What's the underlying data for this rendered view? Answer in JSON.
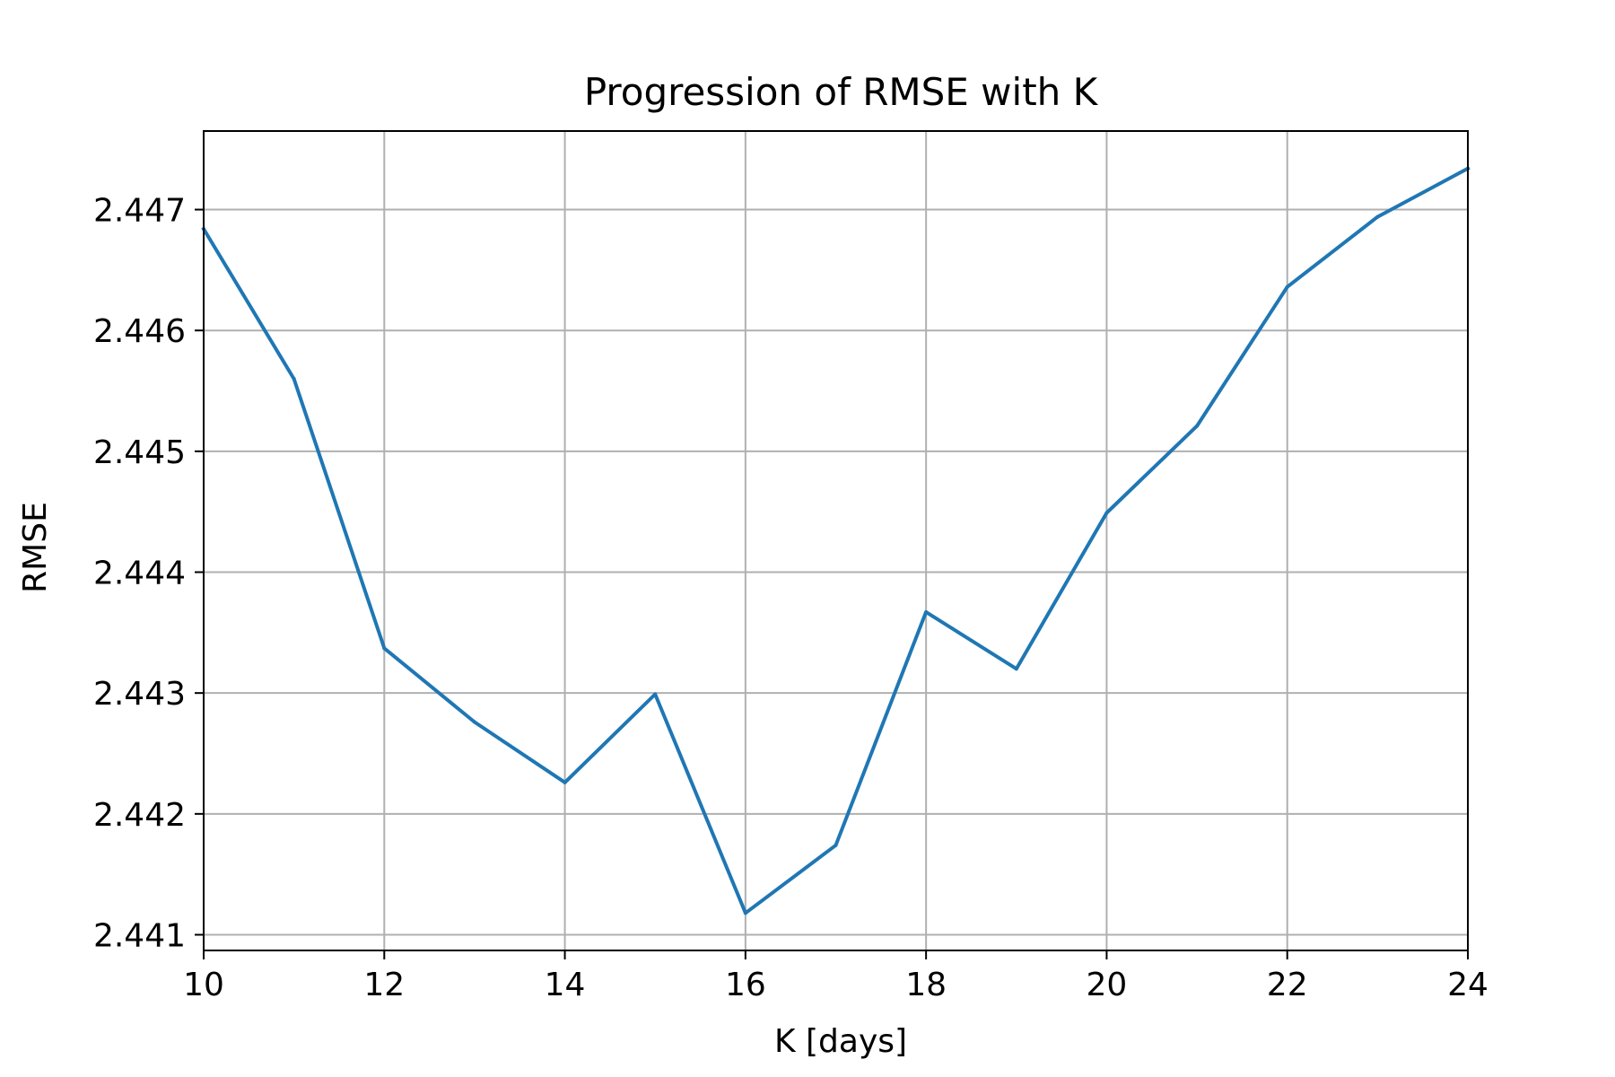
{
  "chart_data": {
    "type": "line",
    "title": "Progression of RMSE with K",
    "xlabel": "K [days]",
    "ylabel": "RMSE",
    "xlim": [
      10,
      24
    ],
    "ylim": [
      2.44087,
      2.44765
    ],
    "xticks": [
      10,
      12,
      14,
      16,
      18,
      20,
      22,
      24
    ],
    "xtick_labels": [
      "10",
      "12",
      "14",
      "16",
      "18",
      "20",
      "22",
      "24"
    ],
    "yticks": [
      2.441,
      2.442,
      2.443,
      2.444,
      2.445,
      2.446,
      2.447
    ],
    "ytick_labels": [
      "2.441",
      "2.442",
      "2.443",
      "2.444",
      "2.445",
      "2.446",
      "2.447"
    ],
    "grid": true,
    "series": [
      {
        "color": "#1f77b4",
        "x": [
          10,
          11,
          12,
          13,
          14,
          15,
          16,
          17,
          18,
          19,
          20,
          21,
          22,
          23,
          24
        ],
        "y": [
          2.44684,
          2.4456,
          2.44337,
          2.44276,
          2.44226,
          2.44299,
          2.44118,
          2.44174,
          2.44367,
          2.4432,
          2.44449,
          2.44521,
          2.44636,
          2.44694,
          2.44734
        ]
      }
    ]
  }
}
